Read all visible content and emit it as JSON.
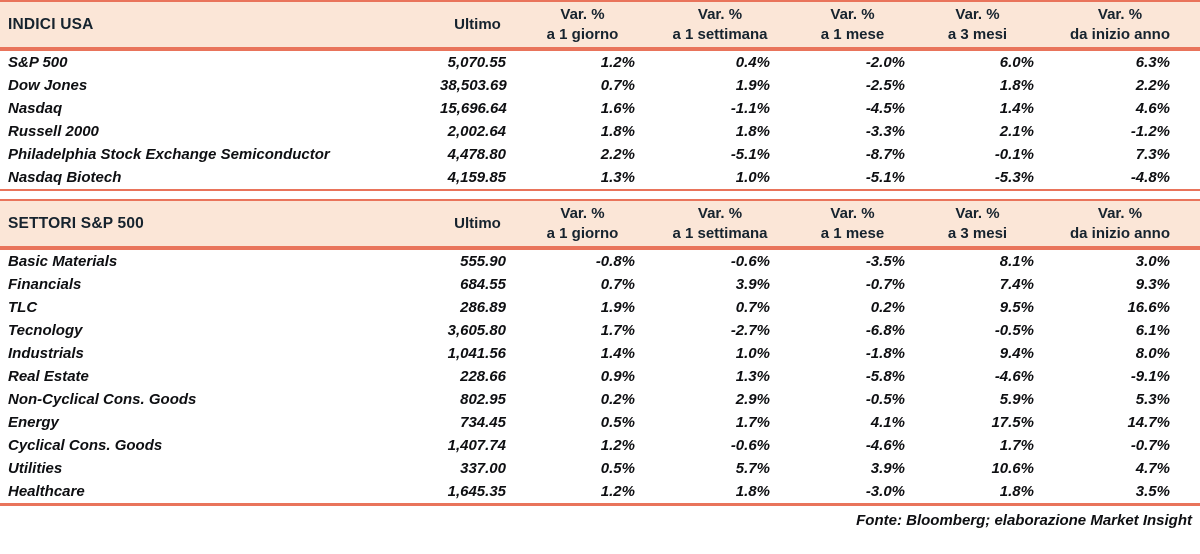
{
  "colors": {
    "accent_line": "#E9745B",
    "header_bg": "#FBE6D7",
    "header_text": "#16232E",
    "body_text": "#0E0F12"
  },
  "chart_data": [
    {
      "type": "table",
      "title": "INDICI USA",
      "header": {
        "last_label": "Ultimo",
        "var_label": "Var. %",
        "periods": [
          "a 1 giorno",
          "a 1 settimana",
          "a 1 mese",
          "a 3 mesi",
          "da inizio anno"
        ]
      },
      "rows": [
        {
          "name": "S&P 500",
          "last": "5,070.55",
          "changes": [
            "1.2%",
            "0.4%",
            "-2.0%",
            "6.0%",
            "6.3%"
          ]
        },
        {
          "name": "Dow Jones",
          "last": "38,503.69",
          "changes": [
            "0.7%",
            "1.9%",
            "-2.5%",
            "1.8%",
            "2.2%"
          ]
        },
        {
          "name": "Nasdaq",
          "last": "15,696.64",
          "changes": [
            "1.6%",
            "-1.1%",
            "-4.5%",
            "1.4%",
            "4.6%"
          ]
        },
        {
          "name": "Russell 2000",
          "last": "2,002.64",
          "changes": [
            "1.8%",
            "1.8%",
            "-3.3%",
            "2.1%",
            "-1.2%"
          ]
        },
        {
          "name": "Philadelphia Stock Exchange Semiconductor",
          "last": "4,478.80",
          "changes": [
            "2.2%",
            "-5.1%",
            "-8.7%",
            "-0.1%",
            "7.3%"
          ]
        },
        {
          "name": "Nasdaq Biotech",
          "last": "4,159.85",
          "changes": [
            "1.3%",
            "1.0%",
            "-5.1%",
            "-5.3%",
            "-4.8%"
          ]
        }
      ]
    },
    {
      "type": "table",
      "title": "SETTORI S&P 500",
      "header": {
        "last_label": "Ultimo",
        "var_label": "Var. %",
        "periods": [
          "a 1 giorno",
          "a 1 settimana",
          "a 1 mese",
          "a 3 mesi",
          "da inizio anno"
        ]
      },
      "rows": [
        {
          "name": "Basic Materials",
          "last": "555.90",
          "changes": [
            "-0.8%",
            "-0.6%",
            "-3.5%",
            "8.1%",
            "3.0%"
          ]
        },
        {
          "name": "Financials",
          "last": "684.55",
          "changes": [
            "0.7%",
            "3.9%",
            "-0.7%",
            "7.4%",
            "9.3%"
          ]
        },
        {
          "name": "TLC",
          "last": "286.89",
          "changes": [
            "1.9%",
            "0.7%",
            "0.2%",
            "9.5%",
            "16.6%"
          ]
        },
        {
          "name": "Tecnology",
          "last": "3,605.80",
          "changes": [
            "1.7%",
            "-2.7%",
            "-6.8%",
            "-0.5%",
            "6.1%"
          ]
        },
        {
          "name": "Industrials",
          "last": "1,041.56",
          "changes": [
            "1.4%",
            "1.0%",
            "-1.8%",
            "9.4%",
            "8.0%"
          ]
        },
        {
          "name": "Real Estate",
          "last": "228.66",
          "changes": [
            "0.9%",
            "1.3%",
            "-5.8%",
            "-4.6%",
            "-9.1%"
          ]
        },
        {
          "name": "Non-Cyclical Cons. Goods",
          "last": "802.95",
          "changes": [
            "0.2%",
            "2.9%",
            "-0.5%",
            "5.9%",
            "5.3%"
          ]
        },
        {
          "name": "Energy",
          "last": "734.45",
          "changes": [
            "0.5%",
            "1.7%",
            "4.1%",
            "17.5%",
            "14.7%"
          ]
        },
        {
          "name": "Cyclical Cons. Goods",
          "last": "1,407.74",
          "changes": [
            "1.2%",
            "-0.6%",
            "-4.6%",
            "1.7%",
            "-0.7%"
          ]
        },
        {
          "name": "Utilities",
          "last": "337.00",
          "changes": [
            "0.5%",
            "5.7%",
            "3.9%",
            "10.6%",
            "4.7%"
          ]
        },
        {
          "name": "Healthcare",
          "last": "1,645.35",
          "changes": [
            "1.2%",
            "1.8%",
            "-3.0%",
            "1.8%",
            "3.5%"
          ]
        }
      ]
    }
  ],
  "footer": {
    "source_note": "Fonte: Bloomberg; elaborazione Market Insight"
  }
}
